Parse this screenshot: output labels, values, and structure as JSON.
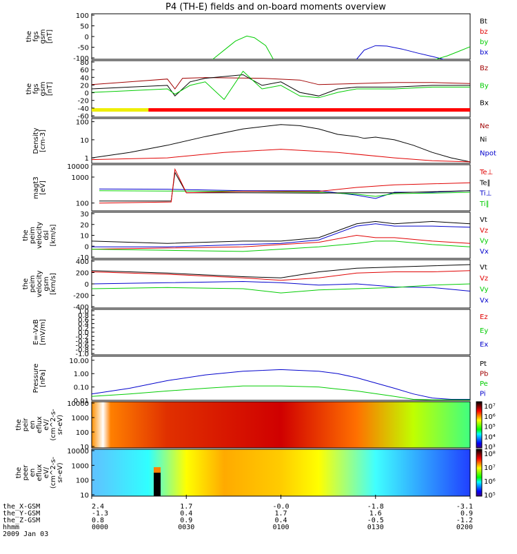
{
  "title": "P4 (TH-E) fields and on-board moments overview",
  "footer": {
    "rows": [
      {
        "label": "the_X-GSM",
        "values": [
          "2.4",
          "1.7",
          "-0.0",
          "-1.8",
          "-3.1"
        ]
      },
      {
        "label": "the_Y-GSM",
        "values": [
          "-1.3",
          "0.4",
          "1.7",
          "1.6",
          "0.9"
        ]
      },
      {
        "label": "the_Z-GSM",
        "values": [
          "0.8",
          "0.9",
          "0.4",
          "-0.5",
          "-1.2"
        ]
      },
      {
        "label": "hhmm",
        "values": [
          "0000",
          "0030",
          "0100",
          "0130",
          "0200"
        ]
      }
    ],
    "date": "2009 Jan 03"
  },
  "colors": {
    "black": "#000000",
    "red": "#e00000",
    "green": "#00cc00",
    "blue": "#0000cc",
    "darkred": "#a00000"
  },
  "chart_data": [
    {
      "type": "line",
      "ylabel_lines": [
        "the",
        "fgs",
        "gsm",
        "[nT]"
      ],
      "ylim": [
        -100,
        100
      ],
      "yticks": [
        "100",
        "50",
        "0",
        "-50",
        "-100"
      ],
      "legend": [
        {
          "label": "Bt",
          "color": "#000000"
        },
        {
          "label": "bz",
          "color": "#e00000"
        },
        {
          "label": "by",
          "color": "#00cc00"
        },
        {
          "label": "bx",
          "color": "#0000cc"
        }
      ],
      "series": [
        {
          "color": "#00cc00",
          "x": [
            0.32,
            0.35,
            0.38,
            0.41,
            0.43,
            0.46,
            0.48
          ],
          "values": [
            -100,
            -60,
            -20,
            2,
            -5,
            -40,
            -100
          ]
        },
        {
          "color": "#0000cc",
          "x": [
            0.7,
            0.72,
            0.75,
            0.78,
            0.82,
            0.86,
            0.9,
            0.93
          ],
          "values": [
            -100,
            -60,
            -40,
            -42,
            -55,
            -72,
            -88,
            -100
          ]
        },
        {
          "color": "#00cc00",
          "x": [
            0.91,
            0.94,
            0.97,
            1.0
          ],
          "values": [
            -100,
            -85,
            -65,
            -45
          ]
        }
      ]
    },
    {
      "type": "line",
      "ylabel_lines": [
        "the",
        "fgs",
        "gsm",
        "[nT]"
      ],
      "ylim": [
        -80,
        80
      ],
      "yticks": [
        "80",
        "60",
        "40",
        "20",
        "0",
        "-20",
        "-40",
        "-60"
      ],
      "legend": [
        {
          "label": "Bz",
          "color": "#a00000"
        },
        {
          "label": "By",
          "color": "#00cc00"
        },
        {
          "label": "Bx",
          "color": "#000000"
        }
      ],
      "series": [
        {
          "color": "#a00000",
          "x": [
            0,
            0.1,
            0.2,
            0.22,
            0.24,
            0.3,
            0.45,
            0.55,
            0.6,
            0.7,
            0.8,
            0.9,
            1.0
          ],
          "values": [
            12,
            20,
            28,
            0,
            30,
            32,
            30,
            25,
            12,
            15,
            18,
            18,
            15
          ]
        },
        {
          "color": "#000000",
          "x": [
            0,
            0.1,
            0.2,
            0.22,
            0.26,
            0.3,
            0.4,
            0.45,
            0.5,
            0.55,
            0.6,
            0.65,
            0.7,
            0.8,
            0.9,
            1.0
          ],
          "values": [
            0,
            5,
            10,
            -20,
            20,
            30,
            40,
            10,
            20,
            -10,
            -20,
            0,
            5,
            5,
            10,
            10
          ]
        },
        {
          "color": "#00cc00",
          "x": [
            0,
            0.1,
            0.2,
            0.22,
            0.26,
            0.3,
            0.35,
            0.4,
            0.45,
            0.5,
            0.55,
            0.6,
            0.65,
            0.7,
            0.8,
            0.9,
            1.0
          ],
          "values": [
            -10,
            -5,
            0,
            -15,
            10,
            20,
            -30,
            50,
            0,
            10,
            -20,
            -25,
            -10,
            0,
            0,
            5,
            5
          ]
        }
      ],
      "mode_bar": [
        {
          "from": 0,
          "to": 0.15,
          "color": "#eeee00"
        },
        {
          "from": 0.15,
          "to": 1.0,
          "color": "#ff0000"
        }
      ]
    },
    {
      "type": "line",
      "scale": "log",
      "ylabel_lines": [
        "Density",
        "[cm-3]"
      ],
      "ylim": [
        0.5,
        150
      ],
      "yticks": [
        "100",
        "10",
        "1"
      ],
      "ytick_values": [
        100,
        10,
        1
      ],
      "legend": [
        {
          "label": "Ne",
          "color": "#a00000"
        },
        {
          "label": "Ni",
          "color": "#000000"
        },
        {
          "label": "Npot",
          "color": "#0000cc"
        }
      ],
      "series": [
        {
          "color": "#000000",
          "x": [
            0,
            0.1,
            0.2,
            0.3,
            0.4,
            0.5,
            0.55,
            0.6,
            0.65,
            0.7,
            0.72,
            0.75,
            0.8,
            0.85,
            0.9,
            0.95,
            1.0
          ],
          "values": [
            1,
            2,
            5,
            15,
            40,
            70,
            60,
            40,
            20,
            15,
            12,
            14,
            10,
            5,
            2,
            1,
            0.6
          ]
        },
        {
          "color": "#e00000",
          "x": [
            0,
            0.2,
            0.35,
            0.5,
            0.65,
            0.8,
            0.9,
            1.0
          ],
          "values": [
            0.8,
            1,
            2,
            3,
            2,
            1,
            0.7,
            0.6
          ]
        }
      ]
    },
    {
      "type": "line",
      "scale": "log",
      "ylabel_lines": [
        "magt3",
        "[eV]"
      ],
      "ylim": [
        50,
        3000
      ],
      "yticks": [
        "1000",
        "100"
      ],
      "ytick_values": [
        1000,
        100
      ],
      "yticks_extra": [
        "10000"
      ],
      "legend": [
        {
          "label": "Te⊥",
          "color": "#e00000"
        },
        {
          "label": "Te∥",
          "color": "#000000"
        },
        {
          "label": "Ti⊥",
          "color": "#0000cc"
        },
        {
          "label": "Ti∥",
          "color": "#00cc00"
        }
      ],
      "series": [
        {
          "color": "#0000cc",
          "x": [
            0.02,
            0.2,
            0.4,
            0.6,
            0.7,
            0.75,
            0.8,
            0.9,
            1.0
          ],
          "values": [
            350,
            340,
            300,
            300,
            200,
            150,
            260,
            260,
            300
          ]
        },
        {
          "color": "#00cc00",
          "x": [
            0.02,
            0.2,
            0.4,
            0.6,
            0.7,
            0.75,
            0.8,
            0.9,
            1.0
          ],
          "values": [
            300,
            290,
            280,
            260,
            220,
            180,
            230,
            240,
            260
          ]
        },
        {
          "color": "#000000",
          "x": [
            0.02,
            0.21,
            0.22,
            0.25,
            0.4,
            0.6,
            0.7,
            0.8,
            1.0
          ],
          "values": [
            120,
            120,
            1500,
            250,
            250,
            240,
            250,
            250,
            300
          ]
        },
        {
          "color": "#e00000",
          "x": [
            0.02,
            0.21,
            0.22,
            0.25,
            0.4,
            0.6,
            0.7,
            0.8,
            1.0
          ],
          "values": [
            100,
            110,
            2000,
            250,
            280,
            280,
            400,
            500,
            600
          ]
        }
      ]
    },
    {
      "type": "line",
      "ylabel_lines": [
        "the",
        "peim",
        "velocity",
        "dsl",
        "[km/s]"
      ],
      "ylim": [
        -10,
        30
      ],
      "yticks": [
        "30",
        "20",
        "10",
        "0",
        "-10"
      ],
      "legend": [
        {
          "label": "Vt",
          "color": "#000000"
        },
        {
          "label": "Vz",
          "color": "#e00000"
        },
        {
          "label": "Vy",
          "color": "#00cc00"
        },
        {
          "label": "Vx",
          "color": "#0000cc"
        }
      ],
      "series": [
        {
          "color": "#000000",
          "x": [
            0,
            0.2,
            0.4,
            0.5,
            0.6,
            0.7,
            0.75,
            0.8,
            0.9,
            1.0
          ],
          "values": [
            5,
            3,
            5,
            5,
            8,
            20,
            22,
            20,
            22,
            20
          ]
        },
        {
          "color": "#0000cc",
          "x": [
            0,
            0.2,
            0.4,
            0.5,
            0.6,
            0.7,
            0.75,
            0.8,
            0.9,
            1.0
          ],
          "values": [
            0,
            0,
            2,
            3,
            6,
            18,
            20,
            18,
            18,
            17
          ]
        },
        {
          "color": "#e00000",
          "x": [
            0,
            0.2,
            0.4,
            0.5,
            0.6,
            0.7,
            0.75,
            0.8,
            0.9,
            1.0
          ],
          "values": [
            -2,
            -1,
            0,
            2,
            4,
            10,
            8,
            8,
            5,
            3
          ]
        },
        {
          "color": "#00cc00",
          "x": [
            0,
            0.2,
            0.4,
            0.5,
            0.6,
            0.7,
            0.75,
            0.8,
            0.9,
            1.0
          ],
          "values": [
            -2,
            -3,
            -4,
            -2,
            0,
            3,
            5,
            5,
            2,
            0
          ]
        }
      ]
    },
    {
      "type": "line",
      "ylabel_lines": [
        "the",
        "peim",
        "velocity",
        "gsm",
        "[km/s]"
      ],
      "ylim": [
        -400,
        400
      ],
      "yticks": [
        "400",
        "200",
        "0",
        "-200",
        "-400"
      ],
      "legend": [
        {
          "label": "Vt",
          "color": "#000000"
        },
        {
          "label": "Vz",
          "color": "#e00000"
        },
        {
          "label": "Vy",
          "color": "#00cc00"
        },
        {
          "label": "Vx",
          "color": "#0000cc"
        }
      ],
      "series": [
        {
          "color": "#000000",
          "x": [
            0,
            0.2,
            0.4,
            0.5,
            0.6,
            0.7,
            0.8,
            0.9,
            1.0
          ],
          "values": [
            220,
            180,
            120,
            100,
            200,
            260,
            280,
            300,
            320
          ]
        },
        {
          "color": "#e00000",
          "x": [
            0,
            0.2,
            0.4,
            0.5,
            0.6,
            0.7,
            0.8,
            0.9,
            1.0
          ],
          "values": [
            200,
            160,
            100,
            60,
            100,
            180,
            200,
            200,
            220
          ]
        },
        {
          "color": "#0000cc",
          "x": [
            0,
            0.2,
            0.4,
            0.5,
            0.6,
            0.7,
            0.8,
            0.9,
            1.0
          ],
          "values": [
            0,
            20,
            40,
            20,
            -20,
            0,
            -50,
            -60,
            -120
          ]
        },
        {
          "color": "#00cc00",
          "x": [
            0,
            0.2,
            0.4,
            0.5,
            0.6,
            0.7,
            0.8,
            0.9,
            1.0
          ],
          "values": [
            -80,
            -60,
            -80,
            -150,
            -100,
            -80,
            -60,
            -20,
            0
          ]
        }
      ]
    },
    {
      "type": "line",
      "ylabel_lines": [
        "E=-VxB",
        "[mV/m]"
      ],
      "ylim": [
        -1,
        1
      ],
      "yticks": [
        "1.0",
        "0.8",
        "0.6",
        "0.4",
        "0.2",
        "0.0",
        "-0.2",
        "-0.4",
        "-0.6",
        "-0.8",
        "-1.0"
      ],
      "legend": [
        {
          "label": "Ez",
          "color": "#e00000"
        },
        {
          "label": "Ey",
          "color": "#00cc00"
        },
        {
          "label": "Ex",
          "color": "#0000cc"
        }
      ],
      "series": []
    },
    {
      "type": "line",
      "scale": "log",
      "ylabel_lines": [
        "Pressure",
        "[nPa]"
      ],
      "ylim": [
        0.01,
        20
      ],
      "yticks": [
        "10.00",
        "1.00",
        "0.10",
        "0.01"
      ],
      "ytick_values": [
        10,
        1,
        0.1,
        0.01
      ],
      "legend": [
        {
          "label": "Pt",
          "color": "#000000"
        },
        {
          "label": "Pb",
          "color": "#a00000"
        },
        {
          "label": "Pe",
          "color": "#00cc00"
        },
        {
          "label": "Pi",
          "color": "#0000cc"
        }
      ],
      "series": [
        {
          "color": "#0000cc",
          "x": [
            0,
            0.1,
            0.2,
            0.3,
            0.4,
            0.5,
            0.6,
            0.65,
            0.7,
            0.8,
            0.85,
            0.9,
            0.95,
            1.0
          ],
          "values": [
            0.03,
            0.08,
            0.3,
            0.8,
            1.5,
            2,
            1.5,
            1,
            0.5,
            0.08,
            0.03,
            0.015,
            0.012,
            0.012
          ]
        },
        {
          "color": "#00cc00",
          "x": [
            0,
            0.1,
            0.2,
            0.3,
            0.4,
            0.5,
            0.6,
            0.65,
            0.7,
            0.8,
            0.85,
            0.9,
            1.0
          ],
          "values": [
            0.02,
            0.03,
            0.05,
            0.08,
            0.12,
            0.12,
            0.1,
            0.07,
            0.05,
            0.02,
            0.012,
            0.011,
            0.011
          ]
        }
      ]
    },
    {
      "type": "heatmap",
      "ylabel_lines": [
        "the",
        "peir",
        "en",
        "eflux",
        "eV/",
        "(cm^2-s-",
        "sr-eV)"
      ],
      "yticks": [
        "10000",
        "1000",
        "100",
        "10"
      ],
      "colorbar_labels": [
        "10⁷",
        "10⁶",
        "10⁵",
        "10⁴",
        "10³"
      ],
      "colorbar_stops": [
        "#000000",
        "#800000",
        "#ff0000",
        "#ff8000",
        "#ffff00",
        "#80ff00",
        "#00ff00",
        "#00ffff",
        "#0080ff",
        "#0000ff",
        "#400080"
      ]
    },
    {
      "type": "heatmap",
      "ylabel_lines": [
        "the",
        "peer",
        "en",
        "eflux",
        "eV/",
        "(cm^2-s-",
        "sr-eV)"
      ],
      "yticks": [
        "10000",
        "1000",
        "100",
        "10"
      ],
      "colorbar_labels": [
        "10⁸",
        "10⁷",
        "10⁶",
        "10⁵"
      ],
      "colorbar_stops": [
        "#000000",
        "#800000",
        "#ff0000",
        "#ff8000",
        "#ffff00",
        "#80ff00",
        "#00ff00",
        "#00ffff",
        "#0080ff",
        "#0000ff",
        "#400080"
      ]
    }
  ]
}
